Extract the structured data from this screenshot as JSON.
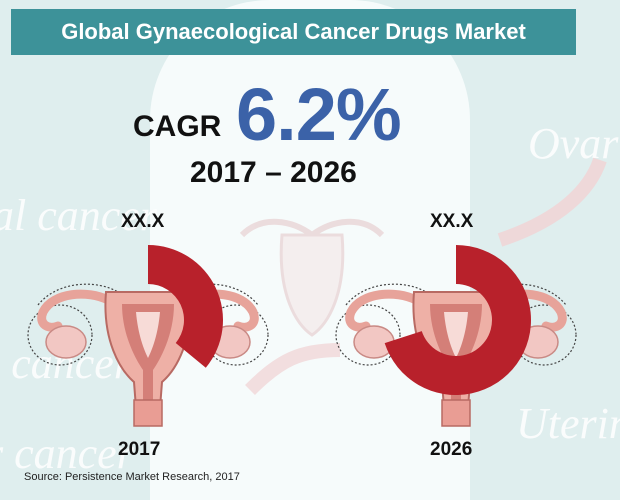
{
  "title": "Global Gynaecological Cancer Drugs Market",
  "cagr": {
    "label": "CAGR",
    "value": "6.2%",
    "period": "2017 – 2026"
  },
  "background_words": [
    "al cancer",
    "l cancer",
    "r cancer",
    "Ovari",
    "Uterin"
  ],
  "source": "Source: Persistence Market Research, 2017",
  "colors": {
    "accent": "#3d9299",
    "cagr": "#3b62a8",
    "arc": "#b8212b",
    "background": "#dfeeee"
  },
  "icons": [
    "uterus-illustration",
    "uterus-illustration"
  ],
  "chart_data": {
    "type": "pie",
    "categories": [
      "2017",
      "2026"
    ],
    "value_labels": [
      "XX.X",
      "XX.X"
    ],
    "fill_fraction": [
      0.36,
      0.7
    ]
  }
}
